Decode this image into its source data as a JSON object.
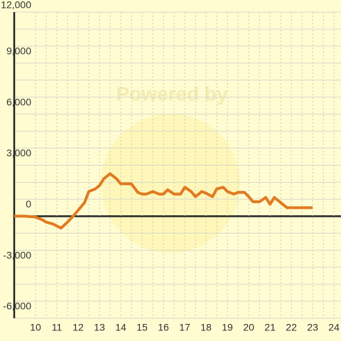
{
  "chart_data": {
    "type": "line",
    "watermark": "Powered by",
    "x": [
      9,
      9.5,
      10,
      10.3,
      10.5,
      10.8,
      11.2,
      11.5,
      11.8,
      12,
      12.3,
      12.5,
      12.8,
      13,
      13.2,
      13.5,
      13.8,
      14,
      14.5,
      14.8,
      15,
      15.2,
      15.5,
      15.8,
      16,
      16.2,
      16.5,
      16.8,
      17,
      17.3,
      17.5,
      17.8,
      18,
      18.3,
      18.5,
      18.8,
      19,
      19.3,
      19.5,
      19.8,
      20,
      20.2,
      20.5,
      20.8,
      21,
      21.2,
      21.5,
      21.8,
      22,
      22.5,
      23
    ],
    "series": [
      {
        "name": "Value",
        "color": "#e07b22",
        "values": [
          0,
          0,
          -50,
          -200,
          -350,
          -450,
          -700,
          -350,
          50,
          350,
          800,
          1450,
          1600,
          1800,
          2200,
          2500,
          2200,
          1900,
          1900,
          1400,
          1300,
          1300,
          1450,
          1300,
          1300,
          1550,
          1300,
          1300,
          1700,
          1450,
          1150,
          1450,
          1350,
          1150,
          1600,
          1700,
          1450,
          1300,
          1400,
          1400,
          1150,
          850,
          850,
          1100,
          700,
          1100,
          800,
          500,
          500,
          500,
          500
        ]
      }
    ],
    "xlim": [
      9,
      24.33
    ],
    "xticks": [
      10,
      11,
      12,
      13,
      14,
      15,
      16,
      17,
      18,
      19,
      20,
      21,
      22,
      23,
      24
    ],
    "ylim": [
      -6000,
      12000
    ],
    "yticks": [
      {
        "value": -6000,
        "label": "-6,000"
      },
      {
        "value": -3000,
        "label": "-3,000"
      },
      0,
      {
        "value": 3000,
        "label": "3,000"
      },
      {
        "value": 6000,
        "label": "6,000"
      },
      {
        "value": 9000,
        "label": "9,000"
      },
      {
        "value": 12000,
        "label": "12,000"
      }
    ],
    "grid": true
  }
}
